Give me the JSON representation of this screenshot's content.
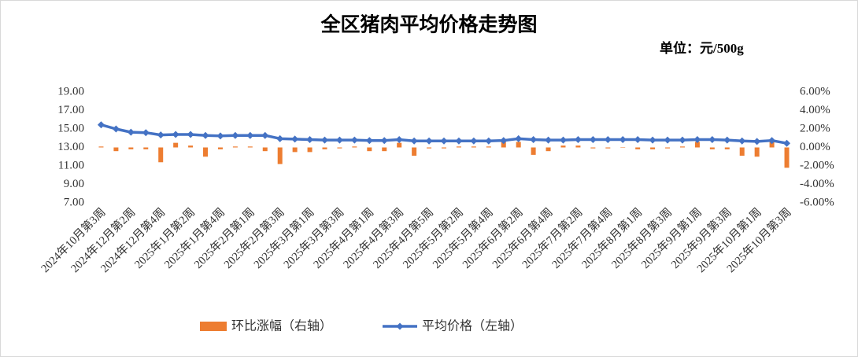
{
  "chart_data": {
    "type": "bar-line",
    "title": "全区猪肉平均价格走势图",
    "subtitle": "单位：元/500g",
    "categories": [
      "2024年10月第3周",
      null,
      "2024年12月第2周",
      null,
      "2024年12月第4周",
      null,
      "2025年1月第2周",
      null,
      "2025年1月第4周",
      null,
      "2025年2月第1周",
      null,
      "2025年2月第3周",
      null,
      "2025年3月第1周",
      null,
      "2025年3月第3周",
      null,
      "2025年4月第1周",
      null,
      "2025年4月第3周",
      null,
      "2025年4月第5周",
      null,
      "2025年5月第2周",
      null,
      "2025年5月第4周",
      null,
      "2025年6月第2周",
      null,
      "2025年6月第4周",
      null,
      "2025年7月第2周",
      null,
      "2025年7月第4周",
      null,
      "2025年8月第1周",
      null,
      "2025年8月第3周",
      null,
      "2025年9月第1周",
      null,
      "2025年9月第3周",
      null,
      "2025年10月第1周",
      null,
      "2025年10月第3周"
    ],
    "series": [
      {
        "name": "环比涨幅（右轴）",
        "type": "bar",
        "axis": "y2",
        "color": "#ed7d31",
        "values": [
          0.1,
          -0.4,
          -0.2,
          -0.2,
          -1.6,
          0.5,
          0.2,
          -1.0,
          -0.2,
          0.1,
          0.1,
          -0.4,
          -1.8,
          -0.5,
          -0.5,
          -0.2,
          -0.1,
          0.1,
          -0.4,
          -0.4,
          0.5,
          -0.9,
          -0.1,
          -0.1,
          0.1,
          0.1,
          0.1,
          0.6,
          0.6,
          -0.8,
          -0.4,
          0.2,
          0.2,
          -0.1,
          -0.1,
          0.0,
          -0.2,
          -0.2,
          -0.1,
          0.1,
          0.6,
          -0.2,
          -0.2,
          -0.9,
          -1.0,
          0.6,
          -2.2
        ]
      },
      {
        "name": "平均价格（左轴）",
        "type": "line",
        "axis": "y",
        "color": "#4472c4",
        "values": [
          15.45,
          15.0,
          14.65,
          14.6,
          14.35,
          14.4,
          14.4,
          14.3,
          14.25,
          14.3,
          14.3,
          14.3,
          13.95,
          13.9,
          13.85,
          13.8,
          13.8,
          13.8,
          13.75,
          13.75,
          13.85,
          13.7,
          13.7,
          13.7,
          13.7,
          13.7,
          13.7,
          13.75,
          13.95,
          13.85,
          13.8,
          13.8,
          13.85,
          13.85,
          13.85,
          13.85,
          13.85,
          13.8,
          13.8,
          13.8,
          13.85,
          13.85,
          13.8,
          13.7,
          13.65,
          13.75,
          13.45
        ]
      }
    ],
    "ylim": [
      7,
      19
    ],
    "yticks": [
      {
        "value": 7,
        "label": "7.00"
      },
      {
        "value": 9,
        "label": "9.00"
      },
      {
        "value": 11,
        "label": "11.00"
      },
      {
        "value": 13,
        "label": "13.00"
      },
      {
        "value": 15,
        "label": "15.00"
      },
      {
        "value": 17,
        "label": "17.00"
      },
      {
        "value": 19,
        "label": "19.00"
      }
    ],
    "y2lim": [
      -6,
      6
    ],
    "y2ticks": [
      {
        "value": -6,
        "label": "-6.00%"
      },
      {
        "value": -4,
        "label": "-4.00%"
      },
      {
        "value": -2,
        "label": "-2.00%"
      },
      {
        "value": 0,
        "label": "0.00%"
      },
      {
        "value": 2,
        "label": "2.00%"
      },
      {
        "value": 4,
        "label": "4.00%"
      },
      {
        "value": 6,
        "label": "6.00%"
      }
    ],
    "grid": false
  }
}
